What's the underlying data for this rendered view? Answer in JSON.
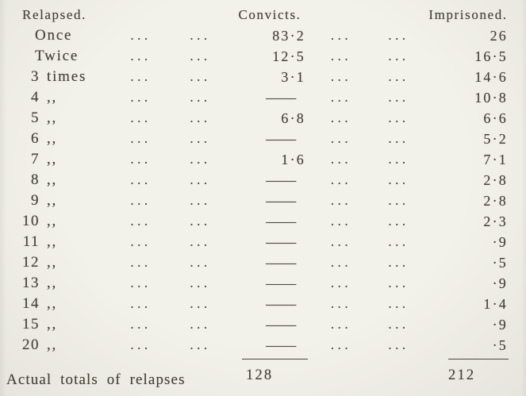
{
  "colors": {
    "paper": "#f2f1ea",
    "ink": "#444036"
  },
  "table": {
    "headers": {
      "relapsed": "Relapsed.",
      "convicts": "Convicts.",
      "imprisoned": "Imprisoned."
    },
    "leader_dots": "...",
    "ditto_mark": ",,",
    "dash": "—",
    "rows": [
      {
        "num": "",
        "label": "Once",
        "convicts": "83·2",
        "imprisoned": "26"
      },
      {
        "num": "",
        "label": "Twice",
        "convicts": "12·5",
        "imprisoned": "16·5"
      },
      {
        "num": "3",
        "label": "times",
        "convicts": "3·1",
        "imprisoned": "14·6"
      },
      {
        "num": "4",
        "label": ",,",
        "convicts": "—",
        "imprisoned": "10·8"
      },
      {
        "num": "5",
        "label": ",,",
        "convicts": "6·8",
        "imprisoned": "6·6"
      },
      {
        "num": "6",
        "label": ",,",
        "convicts": "—",
        "imprisoned": "5·2"
      },
      {
        "num": "7",
        "label": ",,",
        "convicts": "1·6",
        "imprisoned": "7·1"
      },
      {
        "num": "8",
        "label": ",,",
        "convicts": "—",
        "imprisoned": "2·8"
      },
      {
        "num": "9",
        "label": ",,",
        "convicts": "—",
        "imprisoned": "2·8"
      },
      {
        "num": "10",
        "label": ",,",
        "convicts": "—",
        "imprisoned": "2·3"
      },
      {
        "num": "11",
        "label": ",,",
        "convicts": "—",
        "imprisoned": "·9"
      },
      {
        "num": "12",
        "label": ",,",
        "convicts": "—",
        "imprisoned": "·5"
      },
      {
        "num": "13",
        "label": ",,",
        "convicts": "—",
        "imprisoned": "·9"
      },
      {
        "num": "14",
        "label": ",,",
        "convicts": "—",
        "imprisoned": "1·4"
      },
      {
        "num": "15",
        "label": ",,",
        "convicts": "—",
        "imprisoned": "·9"
      },
      {
        "num": "20",
        "label": ",,",
        "convicts": "—",
        "imprisoned": "·5"
      }
    ],
    "totals": {
      "label": "Actual totals of relapses",
      "convicts": "128",
      "imprisoned": "212"
    }
  }
}
